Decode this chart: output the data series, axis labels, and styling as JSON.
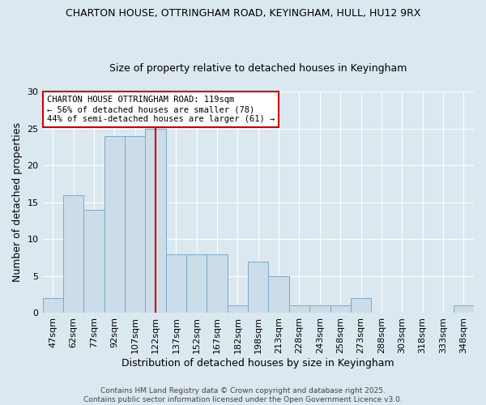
{
  "title1": "CHARTON HOUSE, OTTRINGHAM ROAD, KEYINGHAM, HULL, HU12 9RX",
  "title2": "Size of property relative to detached houses in Keyingham",
  "xlabel": "Distribution of detached houses by size in Keyingham",
  "ylabel": "Number of detached properties",
  "categories": [
    "47sqm",
    "62sqm",
    "77sqm",
    "92sqm",
    "107sqm",
    "122sqm",
    "137sqm",
    "152sqm",
    "167sqm",
    "182sqm",
    "198sqm",
    "213sqm",
    "228sqm",
    "243sqm",
    "258sqm",
    "273sqm",
    "288sqm",
    "303sqm",
    "318sqm",
    "333sqm",
    "348sqm"
  ],
  "values": [
    2,
    16,
    14,
    24,
    24,
    25,
    8,
    8,
    8,
    1,
    7,
    5,
    1,
    1,
    1,
    2,
    0,
    0,
    0,
    0,
    1
  ],
  "bar_color": "#ccdce8",
  "bar_edge_color": "#7aaac8",
  "vline_index": 5,
  "annotation_text": "CHARTON HOUSE OTTRINGHAM ROAD: 119sqm\n← 56% of detached houses are smaller (78)\n44% of semi-detached houses are larger (61) →",
  "annotation_box_color": "#ffffff",
  "annotation_edge_color": "#cc0000",
  "vline_color": "#cc0000",
  "footer": "Contains HM Land Registry data © Crown copyright and database right 2025.\nContains public sector information licensed under the Open Government Licence v3.0.",
  "ylim": [
    0,
    30
  ],
  "yticks": [
    0,
    5,
    10,
    15,
    20,
    25,
    30
  ],
  "background_color": "#dce8f0",
  "plot_background": "#dce8f0",
  "title_fontsize": 9,
  "subtitle_fontsize": 9,
  "ylabel_fontsize": 9,
  "xlabel_fontsize": 9,
  "tick_fontsize": 8,
  "annot_fontsize": 7.5,
  "footer_fontsize": 6.5
}
